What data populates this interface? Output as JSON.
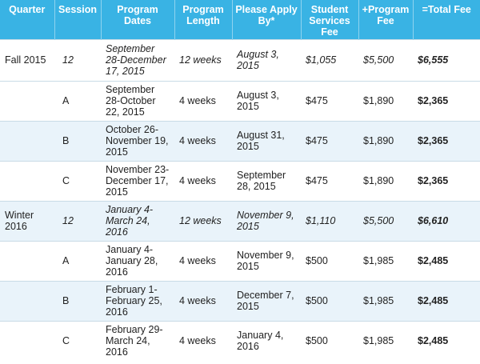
{
  "table": {
    "headers": [
      "Quarter",
      "Session",
      "Program Dates",
      "Program Length",
      "Please Apply By*",
      "Student Services Fee",
      "+Program Fee",
      "=Total Fee"
    ],
    "rows": [
      [
        "Fall 2015",
        "12",
        "September 28-December 17, 2015",
        "12 weeks",
        "August 3, 2015",
        "$1,055",
        "$5,500",
        "$6,555"
      ],
      [
        "",
        "A",
        "September 28-October 22, 2015",
        "4 weeks",
        "August 3, 2015",
        "$475",
        "$1,890",
        "$2,365"
      ],
      [
        "",
        "B",
        "October 26-November 19, 2015",
        "4 weeks",
        "August 31, 2015",
        "$475",
        "$1,890",
        "$2,365"
      ],
      [
        "",
        "C",
        "November 23-December 17, 2015",
        "4 weeks",
        "September 28, 2015",
        "$475",
        "$1,890",
        "$2,365"
      ],
      [
        "Winter 2016",
        "12",
        "January 4-March 24, 2016",
        "12 weeks",
        "November 9, 2015",
        "$1,110",
        "$5,500",
        "$6,610"
      ],
      [
        "",
        "A",
        "January 4-January 28, 2016",
        "4 weeks",
        "November 9, 2015",
        "$500",
        "$1,985",
        "$2,485"
      ],
      [
        "",
        "B",
        "February 1-February 25, 2016",
        "4 weeks",
        "December 7, 2015",
        "$500",
        "$1,985",
        "$2,485"
      ],
      [
        "",
        "C",
        "February 29-March 24, 2016",
        "4 weeks",
        "January 4, 2016",
        "$500",
        "$1,985",
        "$2,485"
      ]
    ]
  },
  "colors": {
    "header_bg": "#39b3e4",
    "stripe_bg": "#e9f3fa"
  }
}
